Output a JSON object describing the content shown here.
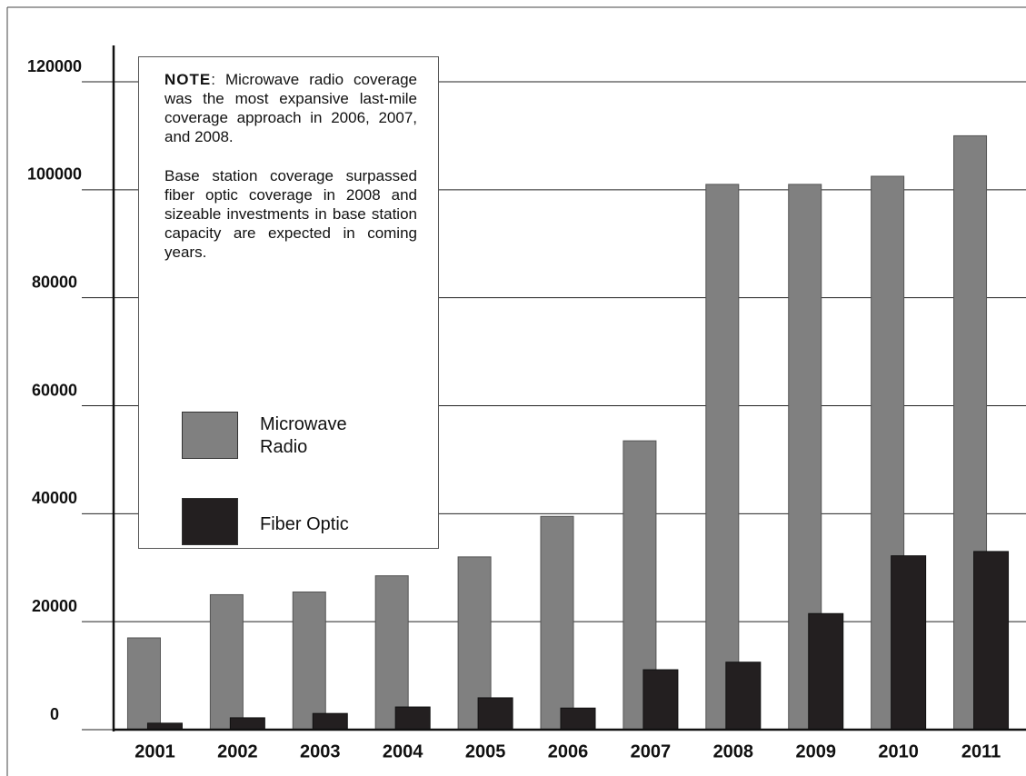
{
  "chart_data": {
    "type": "bar",
    "categories": [
      "2001",
      "2002",
      "2003",
      "2004",
      "2005",
      "2006",
      "2007",
      "2008",
      "2009",
      "2010",
      "2011"
    ],
    "series": [
      {
        "name": "Microwave Radio",
        "color": "#808080",
        "values": [
          17000,
          25000,
          25500,
          28500,
          32000,
          39500,
          53500,
          101000,
          101000,
          102500,
          110000
        ]
      },
      {
        "name": "Fiber Optic",
        "color": "#231f20",
        "values": [
          1200,
          2200,
          3000,
          4200,
          5900,
          4000,
          11100,
          12500,
          21500,
          32200,
          33000
        ]
      }
    ],
    "ylim": [
      0,
      120000
    ],
    "yticks": [
      0,
      20000,
      40000,
      60000,
      80000,
      100000,
      120000
    ],
    "grid": true,
    "note_title": "NOTE",
    "note_paragraphs": [
      ": Microwave radio coverage was the most expansive last-mile coverage approach in 2006, 2007, and 2008.",
      "Base station coverage surpassed fiber optic coverage in 2008 and sizeable investments in base station capacity are expected in coming years."
    ]
  }
}
